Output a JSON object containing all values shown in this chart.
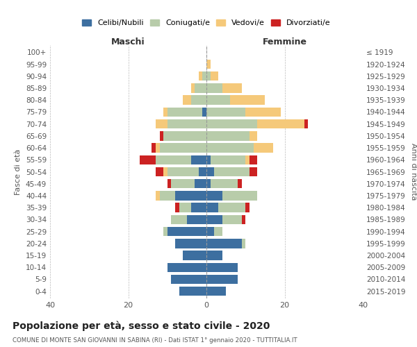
{
  "age_groups": [
    "0-4",
    "5-9",
    "10-14",
    "15-19",
    "20-24",
    "25-29",
    "30-34",
    "35-39",
    "40-44",
    "45-49",
    "50-54",
    "55-59",
    "60-64",
    "65-69",
    "70-74",
    "75-79",
    "80-84",
    "85-89",
    "90-94",
    "95-99",
    "100+"
  ],
  "birth_years": [
    "2015-2019",
    "2010-2014",
    "2005-2009",
    "2000-2004",
    "1995-1999",
    "1990-1994",
    "1985-1989",
    "1980-1984",
    "1975-1979",
    "1970-1974",
    "1965-1969",
    "1960-1964",
    "1955-1959",
    "1950-1954",
    "1945-1949",
    "1940-1944",
    "1935-1939",
    "1930-1934",
    "1925-1929",
    "1920-1924",
    "≤ 1919"
  ],
  "male": {
    "celibi": [
      7,
      9,
      10,
      6,
      8,
      10,
      5,
      4,
      8,
      3,
      2,
      4,
      0,
      0,
      0,
      1,
      0,
      0,
      0,
      0,
      0
    ],
    "coniugati": [
      0,
      0,
      0,
      0,
      0,
      1,
      4,
      3,
      4,
      6,
      8,
      9,
      12,
      11,
      10,
      9,
      4,
      3,
      1,
      0,
      0
    ],
    "vedovi": [
      0,
      0,
      0,
      0,
      0,
      0,
      0,
      0,
      1,
      0,
      1,
      0,
      1,
      0,
      3,
      1,
      2,
      1,
      1,
      0,
      0
    ],
    "divorziati": [
      0,
      0,
      0,
      0,
      0,
      0,
      0,
      1,
      0,
      1,
      2,
      4,
      1,
      1,
      0,
      0,
      0,
      0,
      0,
      0,
      0
    ]
  },
  "female": {
    "nubili": [
      5,
      8,
      8,
      4,
      9,
      2,
      4,
      3,
      4,
      1,
      2,
      1,
      0,
      0,
      0,
      0,
      0,
      0,
      0,
      0,
      0
    ],
    "coniugate": [
      0,
      0,
      0,
      0,
      1,
      2,
      5,
      7,
      9,
      7,
      9,
      9,
      12,
      11,
      13,
      10,
      6,
      4,
      1,
      0,
      0
    ],
    "vedove": [
      0,
      0,
      0,
      0,
      0,
      0,
      0,
      0,
      0,
      0,
      0,
      1,
      5,
      2,
      12,
      9,
      9,
      5,
      2,
      1,
      0
    ],
    "divorziate": [
      0,
      0,
      0,
      0,
      0,
      0,
      1,
      1,
      0,
      1,
      2,
      2,
      0,
      0,
      1,
      0,
      0,
      0,
      0,
      0,
      0
    ]
  },
  "colors": {
    "celibi": "#3d6fa0",
    "coniugati": "#b8ccaa",
    "vedovi": "#f5c97a",
    "divorziati": "#cc2222"
  },
  "title": "Popolazione per età, sesso e stato civile - 2020",
  "subtitle": "COMUNE DI MONTE SAN GIOVANNI IN SABINA (RI) - Dati ISTAT 1° gennaio 2020 - TUTTITALIA.IT",
  "xlabel_left": "Maschi",
  "xlabel_right": "Femmine",
  "ylabel_left": "Fasce di età",
  "ylabel_right": "Anni di nascita",
  "xlim": 40,
  "legend_labels": [
    "Celibi/Nubili",
    "Coniugati/e",
    "Vedovi/e",
    "Divorziati/e"
  ]
}
